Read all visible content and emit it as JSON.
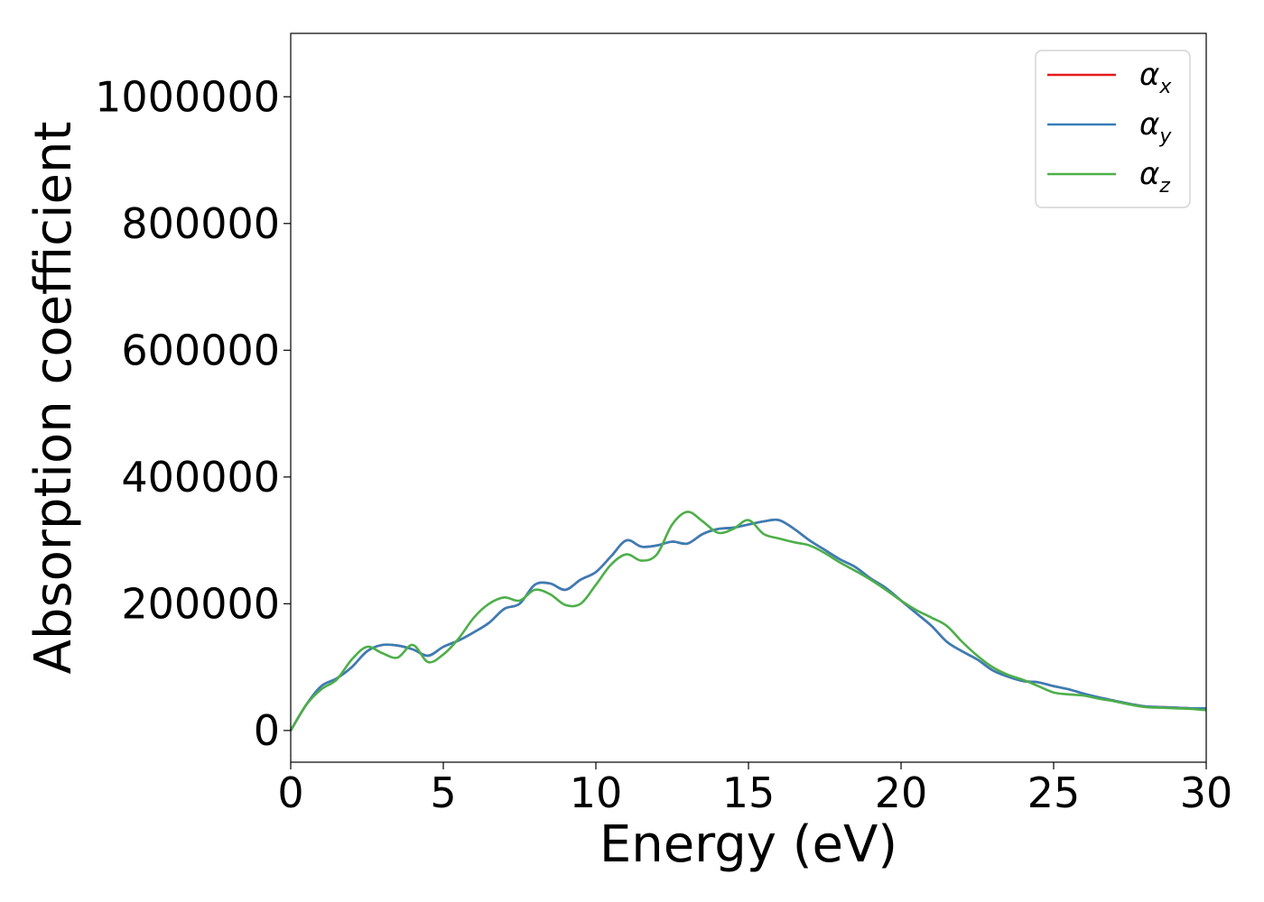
{
  "chart_data": {
    "type": "line",
    "title": "",
    "xlabel": "Energy (eV)",
    "ylabel": "Absorption coefficient",
    "xlim": [
      0,
      30
    ],
    "ylim": [
      -50000,
      1100000
    ],
    "xticks": [
      0,
      5,
      10,
      15,
      20,
      25,
      30
    ],
    "xtick_labels": [
      "0",
      "5",
      "10",
      "15",
      "20",
      "25",
      "30"
    ],
    "yticks": [
      0,
      200000,
      400000,
      600000,
      800000,
      1000000
    ],
    "ytick_labels": [
      "0",
      "200000",
      "400000",
      "600000",
      "800000",
      "1000000"
    ],
    "grid": false,
    "legend_position": "top-right",
    "series": [
      {
        "name": "α",
        "subscript": "x",
        "color": "#e41a1c",
        "x": [
          0,
          0.5,
          1,
          1.5,
          2,
          2.5,
          3,
          3.5,
          4,
          4.5,
          5,
          5.5,
          6,
          6.5,
          7,
          7.5,
          8,
          8.5,
          9,
          9.5,
          10,
          10.5,
          11,
          11.5,
          12,
          12.5,
          13,
          13.5,
          14,
          14.5,
          15,
          15.5,
          16,
          16.5,
          17,
          17.5,
          18,
          18.5,
          19,
          19.5,
          20,
          20.5,
          21,
          21.5,
          22,
          22.5,
          23,
          23.5,
          24,
          24.5,
          25,
          25.5,
          26,
          26.5,
          27,
          27.5,
          28,
          28.5,
          29,
          29.5,
          30
        ],
        "y": [
          0,
          40000,
          70000,
          82000,
          100000,
          125000,
          135000,
          134000,
          128000,
          118000,
          132000,
          142000,
          155000,
          170000,
          192000,
          200000,
          230000,
          232000,
          222000,
          238000,
          250000,
          275000,
          300000,
          290000,
          292000,
          298000,
          295000,
          310000,
          318000,
          320000,
          325000,
          330000,
          332000,
          318000,
          300000,
          285000,
          270000,
          258000,
          240000,
          225000,
          205000,
          185000,
          165000,
          140000,
          125000,
          112000,
          95000,
          85000,
          78000,
          76000,
          70000,
          65000,
          58000,
          52000,
          47000,
          42000,
          38000,
          37000,
          36000,
          35000,
          35000
        ]
      },
      {
        "name": "α",
        "subscript": "y",
        "color": "#377eb8",
        "x": [
          0,
          0.5,
          1,
          1.5,
          2,
          2.5,
          3,
          3.5,
          4,
          4.5,
          5,
          5.5,
          6,
          6.5,
          7,
          7.5,
          8,
          8.5,
          9,
          9.5,
          10,
          10.5,
          11,
          11.5,
          12,
          12.5,
          13,
          13.5,
          14,
          14.5,
          15,
          15.5,
          16,
          16.5,
          17,
          17.5,
          18,
          18.5,
          19,
          19.5,
          20,
          20.5,
          21,
          21.5,
          22,
          22.5,
          23,
          23.5,
          24,
          24.5,
          25,
          25.5,
          26,
          26.5,
          27,
          27.5,
          28,
          28.5,
          29,
          29.5,
          30
        ],
        "y": [
          0,
          40000,
          70000,
          82000,
          100000,
          125000,
          135000,
          134000,
          128000,
          118000,
          132000,
          142000,
          155000,
          170000,
          192000,
          200000,
          230000,
          232000,
          222000,
          238000,
          250000,
          275000,
          300000,
          290000,
          292000,
          298000,
          295000,
          310000,
          318000,
          320000,
          325000,
          330000,
          332000,
          318000,
          300000,
          285000,
          270000,
          258000,
          240000,
          225000,
          205000,
          185000,
          165000,
          140000,
          125000,
          112000,
          95000,
          85000,
          78000,
          76000,
          70000,
          65000,
          58000,
          52000,
          47000,
          42000,
          38000,
          37000,
          36000,
          35000,
          35000
        ]
      },
      {
        "name": "α",
        "subscript": "z",
        "color": "#4daf4a",
        "x": [
          0,
          0.5,
          1,
          1.5,
          2,
          2.5,
          3,
          3.5,
          4,
          4.5,
          5,
          5.5,
          6,
          6.5,
          7,
          7.5,
          8,
          8.5,
          9,
          9.5,
          10,
          10.5,
          11,
          11.5,
          12,
          12.5,
          13,
          13.5,
          14,
          14.5,
          15,
          15.5,
          16,
          16.5,
          17,
          17.5,
          18,
          18.5,
          19,
          19.5,
          20,
          20.5,
          21,
          21.5,
          22,
          22.5,
          23,
          23.5,
          24,
          24.5,
          25,
          25.5,
          26,
          26.5,
          27,
          27.5,
          28,
          28.5,
          29,
          29.5,
          30
        ],
        "y": [
          0,
          40000,
          65000,
          80000,
          112000,
          132000,
          122000,
          115000,
          135000,
          108000,
          120000,
          145000,
          178000,
          200000,
          210000,
          205000,
          222000,
          215000,
          198000,
          200000,
          230000,
          262000,
          278000,
          268000,
          278000,
          325000,
          345000,
          330000,
          312000,
          318000,
          332000,
          310000,
          303000,
          297000,
          292000,
          280000,
          265000,
          252000,
          238000,
          222000,
          205000,
          190000,
          178000,
          165000,
          140000,
          118000,
          100000,
          88000,
          80000,
          70000,
          60000,
          57000,
          55000,
          50000,
          46000,
          41000,
          37000,
          36000,
          35000,
          34000,
          32000
        ]
      }
    ]
  }
}
